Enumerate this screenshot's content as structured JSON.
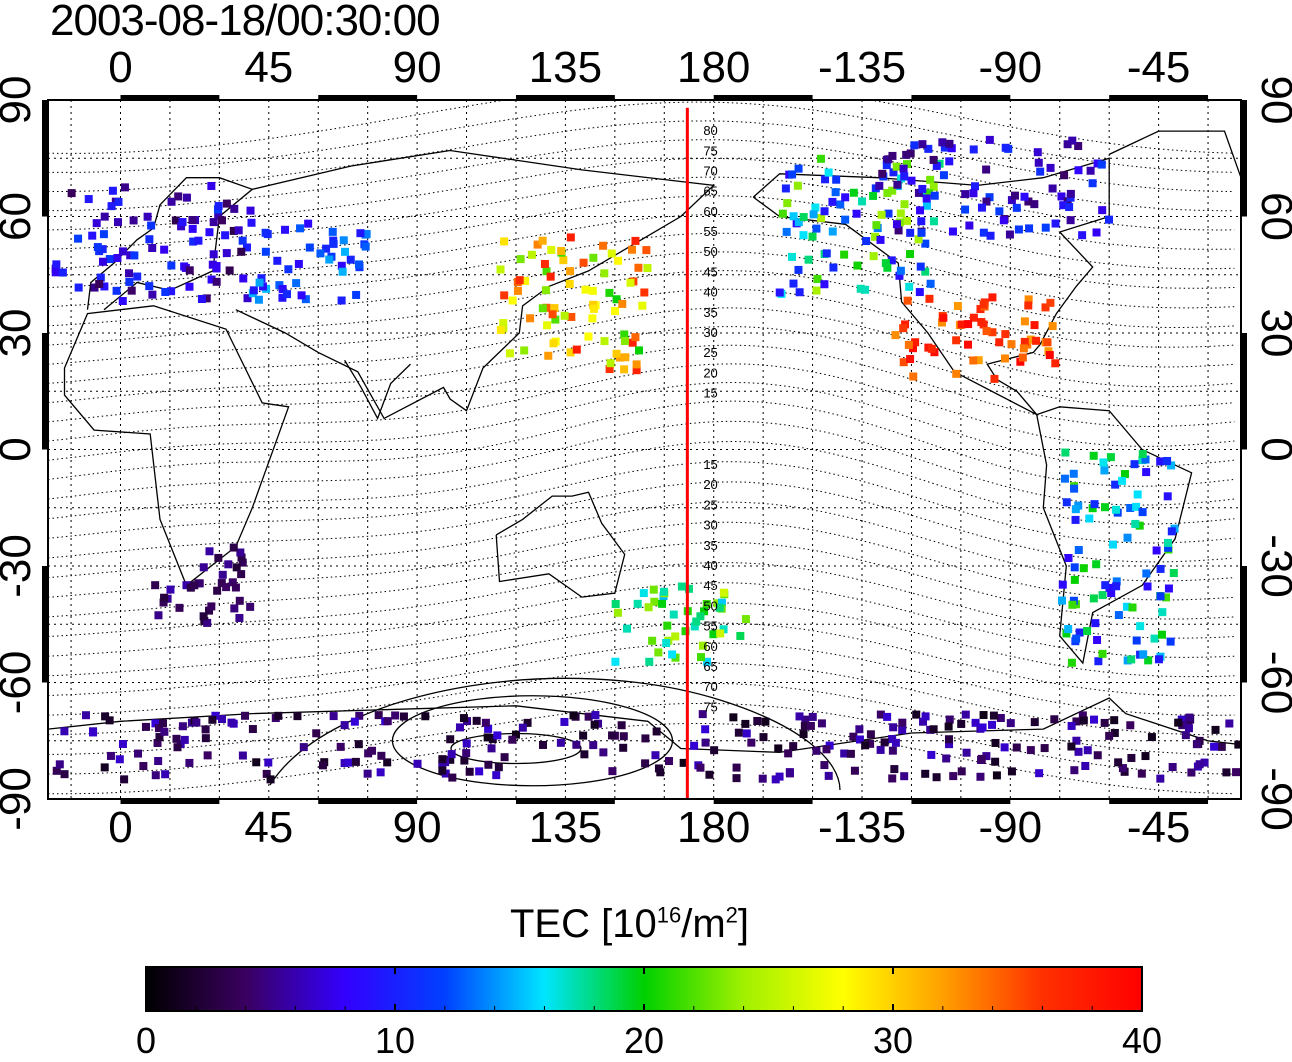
{
  "title": "2003-08-18/00:30:00",
  "map": {
    "x_tick_labels": [
      "0",
      "45",
      "90",
      "135",
      "180",
      "-135",
      "-90",
      "-45"
    ],
    "y_tick_labels": [
      "90",
      "60",
      "30",
      "0",
      "-30",
      "-60",
      "-90"
    ],
    "meridian_marker_lon": 172,
    "meridian_marker_color": "#ff0000",
    "contour_labels_north": [
      "80",
      "75",
      "70",
      "65",
      "60",
      "55",
      "50",
      "45",
      "40",
      "35",
      "30",
      "25",
      "20",
      "15"
    ],
    "contour_labels_south": [
      "15",
      "20",
      "25",
      "30",
      "35",
      "40",
      "45",
      "50",
      "55",
      "60",
      "65",
      "70",
      "75"
    ]
  },
  "colorbar": {
    "title_main": "TEC  [10",
    "title_exp1": "16",
    "title_mid": "/m",
    "title_exp2": "2",
    "title_end": "]",
    "tick_labels": [
      "0",
      "10",
      "20",
      "30",
      "40"
    ],
    "colormap": [
      "#000000",
      "#3a0060",
      "#3300ff",
      "#0040ff",
      "#00e5ff",
      "#00d000",
      "#a0f000",
      "#ffff00",
      "#ffa000",
      "#ff3000",
      "#ff0000"
    ]
  },
  "chart_data": {
    "type": "heatmap",
    "title": "2003-08-18/00:30:00",
    "xlabel": "",
    "ylabel": "",
    "xlim": [
      -22,
      340
    ],
    "ylim": [
      -90,
      90
    ],
    "colorbar_label": "TEC [10^16/m^2]",
    "colorbar_range": [
      0,
      40
    ],
    "regions": [
      {
        "lon_range": [
          -20,
          40
        ],
        "lat_range": [
          38,
          68
        ],
        "tec_range": [
          3,
          12
        ]
      },
      {
        "lon_range": [
          40,
          75
        ],
        "lat_range": [
          38,
          60
        ],
        "tec_range": [
          8,
          15
        ]
      },
      {
        "lon_range": [
          115,
          160
        ],
        "lat_range": [
          20,
          55
        ],
        "tec_range": [
          20,
          38
        ]
      },
      {
        "lon_range": [
          200,
          250
        ],
        "lat_range": [
          40,
          75
        ],
        "tec_range": [
          8,
          25
        ]
      },
      {
        "lon_range": [
          235,
          285
        ],
        "lat_range": [
          18,
          40
        ],
        "tec_range": [
          32,
          40
        ]
      },
      {
        "lon_range": [
          230,
          300
        ],
        "lat_range": [
          55,
          80
        ],
        "tec_range": [
          4,
          12
        ]
      },
      {
        "lon_range": [
          150,
          190
        ],
        "lat_range": [
          -55,
          -35
        ],
        "tec_range": [
          14,
          26
        ]
      },
      {
        "lon_range": [
          285,
          320
        ],
        "lat_range": [
          -55,
          0
        ],
        "tec_range": [
          8,
          22
        ]
      },
      {
        "lon_range": [
          10,
          40
        ],
        "lat_range": [
          -45,
          -25
        ],
        "tec_range": [
          2,
          6
        ]
      },
      {
        "lon_range": [
          -20,
          340
        ],
        "lat_range": [
          -85,
          -68
        ],
        "tec_range": [
          1,
          7
        ]
      }
    ]
  }
}
